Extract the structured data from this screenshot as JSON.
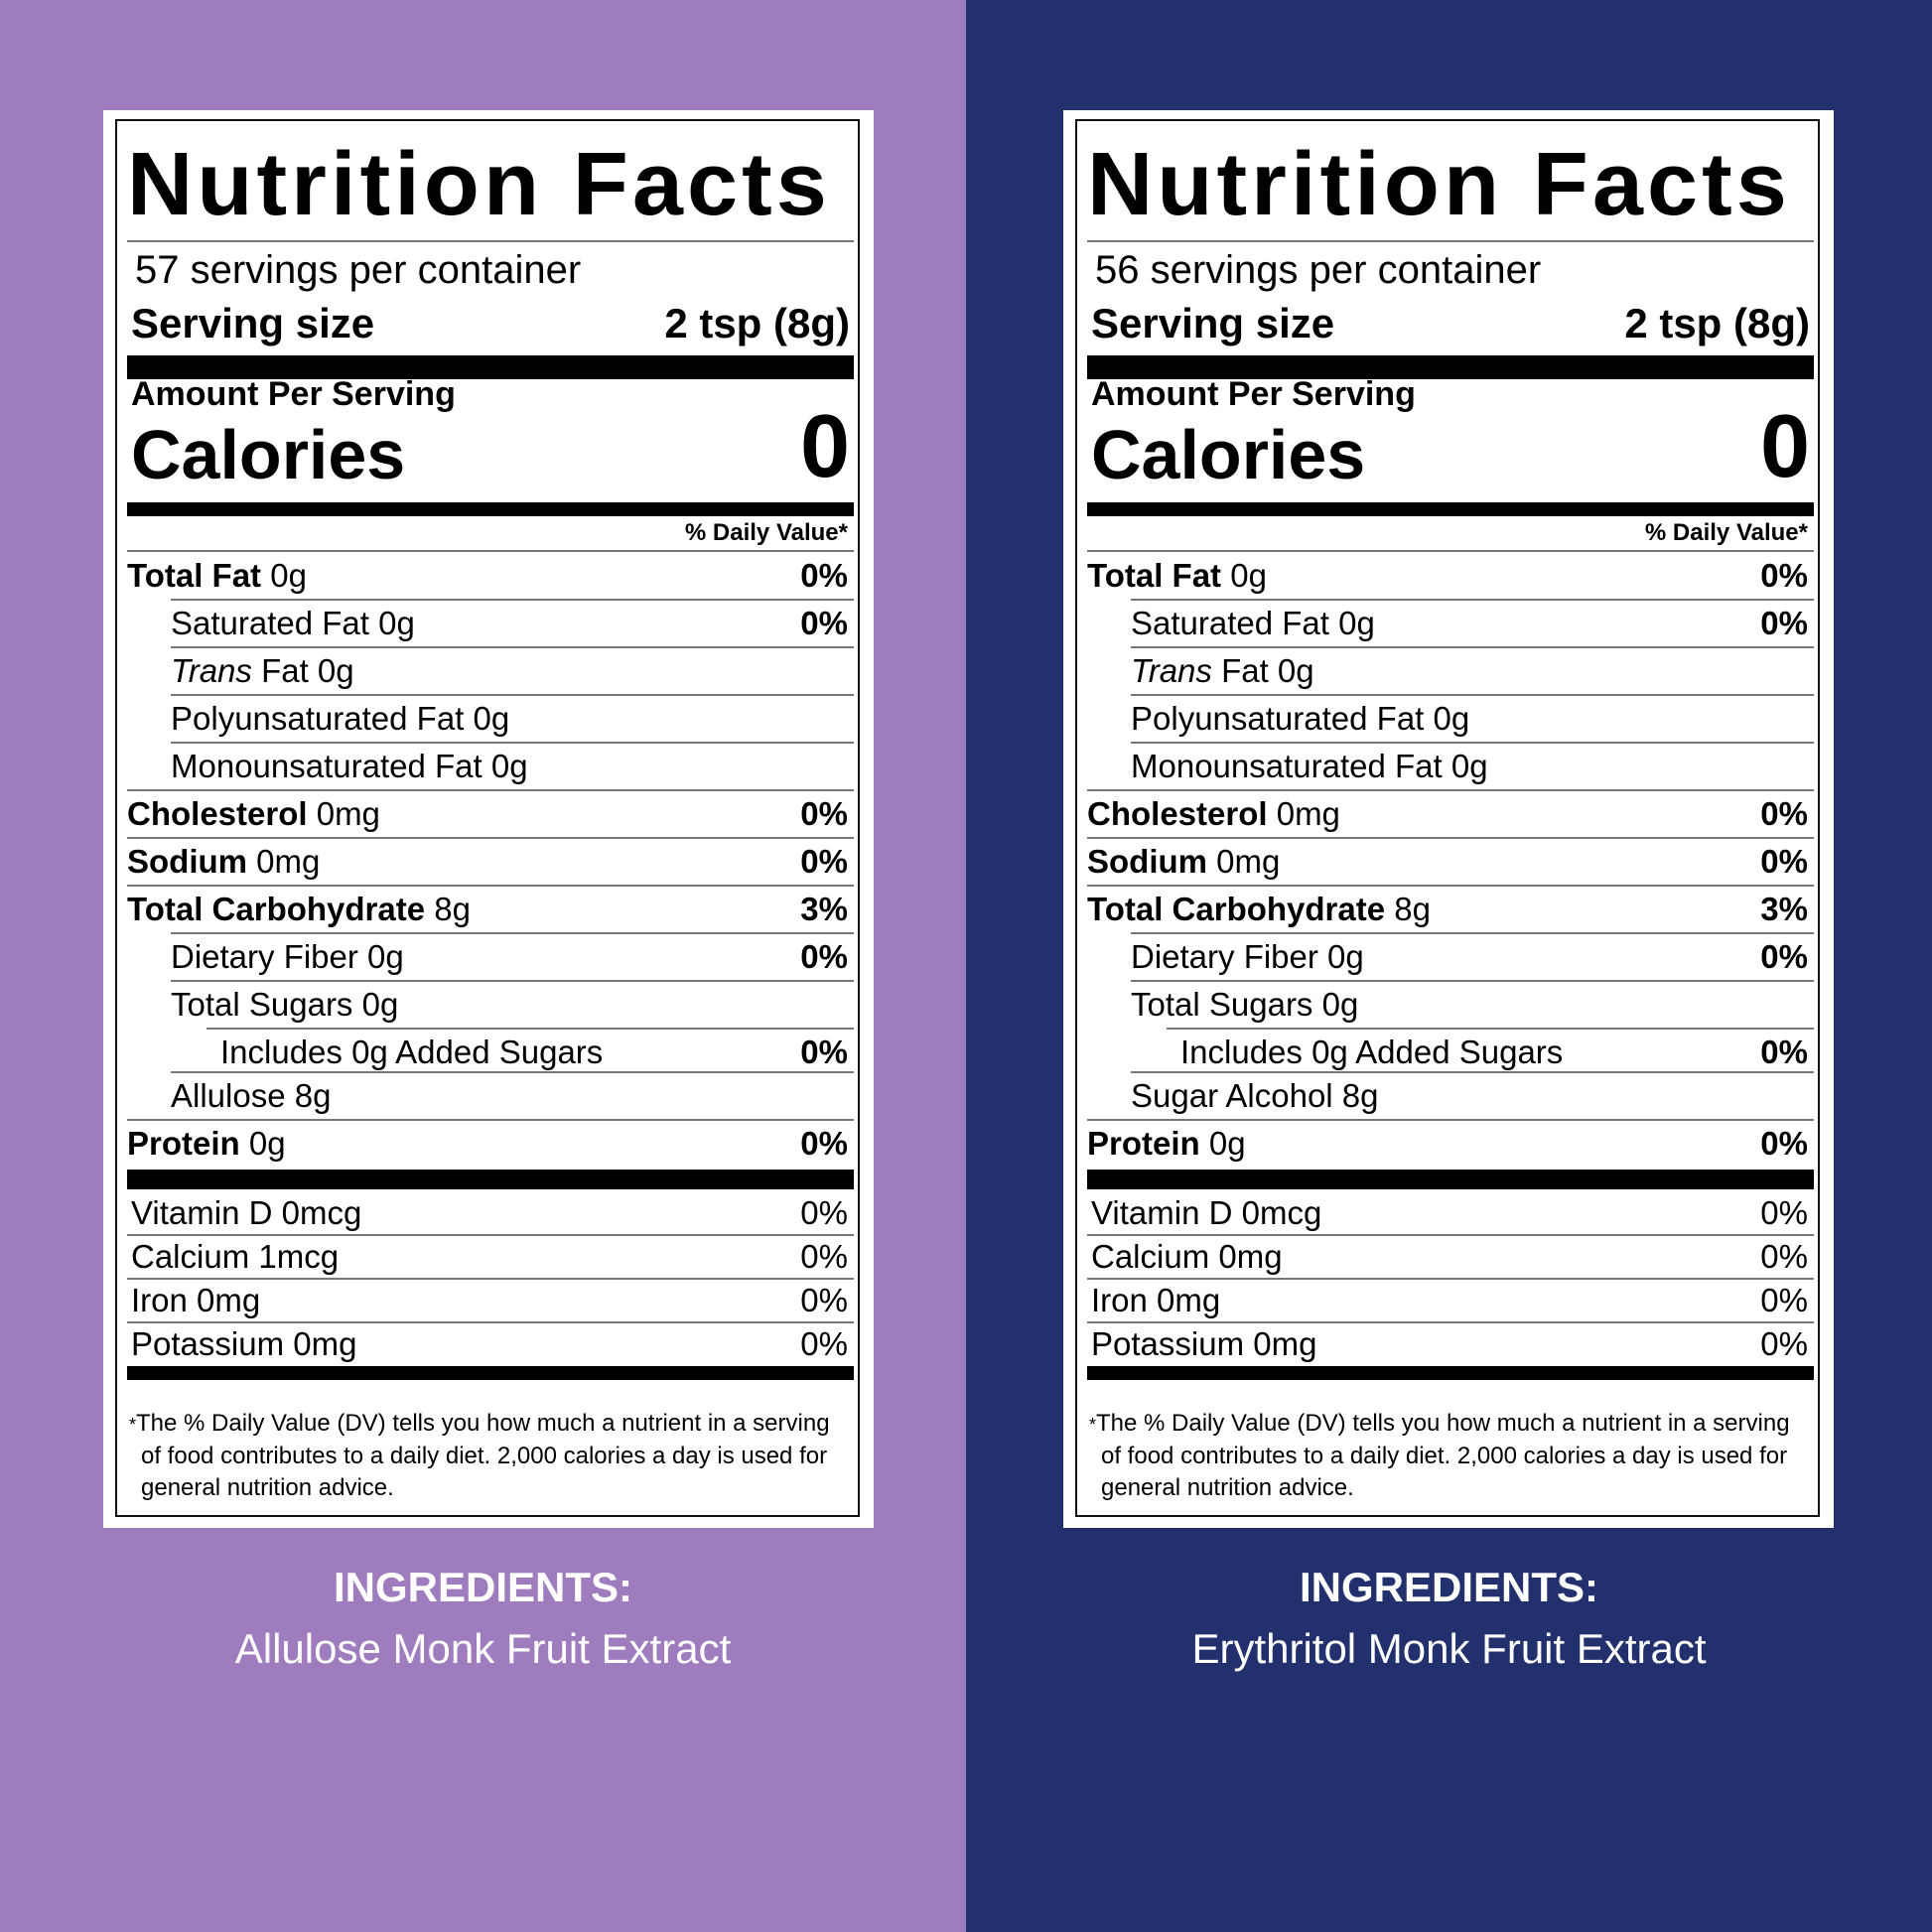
{
  "colors": {
    "left_bg": "#9f7cbe",
    "right_bg": "#22306e"
  },
  "panels": [
    {
      "title": "Nutrition Facts",
      "servings": "57 servings per container",
      "serving_size_label": "Serving size",
      "serving_size_value": "2 tsp (8g)",
      "amount_per_serving": "Amount Per Serving",
      "calories_label": "Calories",
      "calories_value": "0",
      "dv_header": "% Daily Value*",
      "nutrients": [
        {
          "bold": "Total Fat",
          "rest": " 0g",
          "pct": "0%",
          "indent": 0
        },
        {
          "bold": "",
          "rest": "Saturated Fat 0g",
          "pct": "0%",
          "indent": 1
        },
        {
          "bold": "",
          "italic": "Trans",
          "rest": " Fat 0g",
          "pct": "",
          "indent": 1
        },
        {
          "bold": "",
          "rest": "Polyunsaturated Fat 0g",
          "pct": "",
          "indent": 1
        },
        {
          "bold": "",
          "rest": "Monounsaturated Fat 0g",
          "pct": "",
          "indent": 1
        },
        {
          "bold": "Cholesterol",
          "rest": " 0mg",
          "pct": "0%",
          "indent": 0
        },
        {
          "bold": "Sodium",
          "rest": " 0mg",
          "pct": "0%",
          "indent": 0
        },
        {
          "bold": "Total Carbohydrate",
          "rest": " 8g",
          "pct": "3%",
          "indent": 0
        },
        {
          "bold": "",
          "rest": "Dietary Fiber 0g",
          "pct": "0%",
          "indent": 1
        },
        {
          "bold": "",
          "rest": "Total Sugars 0g",
          "pct": "",
          "indent": 1
        },
        {
          "bold": "",
          "rest": "Includes 0g Added Sugars",
          "pct": "0%",
          "indent": 2
        },
        {
          "bold": "",
          "rest": "Allulose 8g",
          "pct": "",
          "indent": 1
        },
        {
          "bold": "Protein",
          "rest": " 0g",
          "pct": "0%",
          "indent": 0
        }
      ],
      "vitamins": [
        {
          "name": "Vitamin D 0mcg",
          "pct": "0%"
        },
        {
          "name": "Calcium 1mcg",
          "pct": "0%"
        },
        {
          "name": "Iron 0mg",
          "pct": "0%"
        },
        {
          "name": "Potassium 0mg",
          "pct": "0%"
        }
      ],
      "footnote": "The % Daily Value (DV) tells you how much a nutrient in a serving of food contributes to a daily diet. 2,000 calories a day is used for general nutrition advice.",
      "ingredients_title": "INGREDIENTS:",
      "ingredients_text": "Allulose Monk Fruit Extract"
    },
    {
      "title": "Nutrition Facts",
      "servings": "56 servings per container",
      "serving_size_label": "Serving size",
      "serving_size_value": "2 tsp (8g)",
      "amount_per_serving": "Amount Per Serving",
      "calories_label": "Calories",
      "calories_value": "0",
      "dv_header": "% Daily Value*",
      "nutrients": [
        {
          "bold": "Total Fat",
          "rest": " 0g",
          "pct": "0%",
          "indent": 0
        },
        {
          "bold": "",
          "rest": "Saturated Fat 0g",
          "pct": "0%",
          "indent": 1
        },
        {
          "bold": "",
          "italic": "Trans",
          "rest": " Fat 0g",
          "pct": "",
          "indent": 1
        },
        {
          "bold": "",
          "rest": "Polyunsaturated Fat 0g",
          "pct": "",
          "indent": 1
        },
        {
          "bold": "",
          "rest": "Monounsaturated Fat 0g",
          "pct": "",
          "indent": 1
        },
        {
          "bold": "Cholesterol",
          "rest": " 0mg",
          "pct": "0%",
          "indent": 0
        },
        {
          "bold": "Sodium",
          "rest": " 0mg",
          "pct": "0%",
          "indent": 0
        },
        {
          "bold": "Total Carbohydrate",
          "rest": " 8g",
          "pct": "3%",
          "indent": 0
        },
        {
          "bold": "",
          "rest": "Dietary Fiber 0g",
          "pct": "0%",
          "indent": 1
        },
        {
          "bold": "",
          "rest": "Total Sugars 0g",
          "pct": "",
          "indent": 1
        },
        {
          "bold": "",
          "rest": "Includes 0g Added Sugars",
          "pct": "0%",
          "indent": 2
        },
        {
          "bold": "",
          "rest": "Sugar Alcohol 8g",
          "pct": "",
          "indent": 1
        },
        {
          "bold": "Protein",
          "rest": " 0g",
          "pct": "0%",
          "indent": 0
        }
      ],
      "vitamins": [
        {
          "name": "Vitamin D 0mcg",
          "pct": "0%"
        },
        {
          "name": "Calcium 0mg",
          "pct": "0%"
        },
        {
          "name": "Iron 0mg",
          "pct": "0%"
        },
        {
          "name": "Potassium 0mg",
          "pct": "0%"
        }
      ],
      "footnote": "The % Daily Value (DV) tells you how much a nutrient in a serving of food contributes to a daily diet. 2,000 calories a day is used for general nutrition advice.",
      "ingredients_title": "INGREDIENTS:",
      "ingredients_text": "Erythritol Monk Fruit Extract"
    }
  ]
}
